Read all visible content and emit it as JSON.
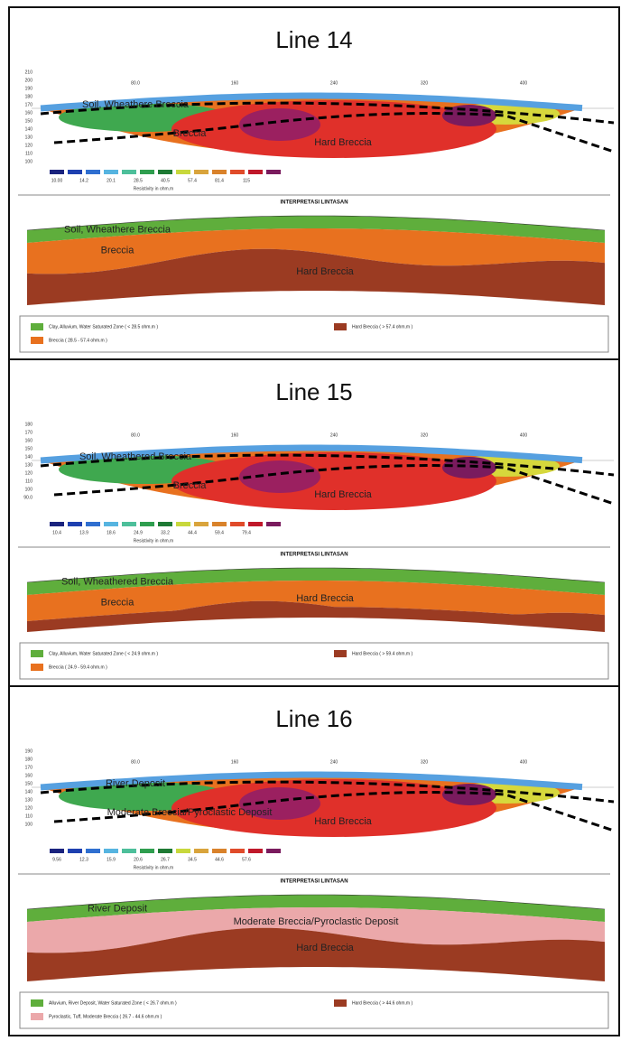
{
  "panels": [
    {
      "title": "Line 14",
      "x_ticks": [
        "80.0",
        "160",
        "240",
        "320",
        "400"
      ],
      "y_ticks": [
        "210",
        "200",
        "190",
        "180",
        "170",
        "160",
        "150",
        "140",
        "130",
        "120",
        "110",
        "100"
      ],
      "section_labels": [
        "Soil, Wheathere Breccia",
        "Breccia",
        "Hard Breccia"
      ],
      "scale_values": [
        "10.00",
        "14.2",
        "20.1",
        "28.5",
        "40.5",
        "57.4",
        "81.4",
        "115"
      ],
      "scale_caption": "Resistivity in ohm.m",
      "interp_title": "INTERPRETASI LINTASAN",
      "interp_labels": [
        "Soil, Wheathere Breccia",
        "Breccia",
        "Hard Breccia"
      ],
      "legend": [
        "Clay, Alluvium, Water Saturated Zone ( < 28.5 ohm.m )",
        "Breccia ( 28.5 - 57.4 ohm.m )",
        "Hard Breccia ( > 57.4 ohm.m )"
      ]
    },
    {
      "title": "Line 15",
      "x_ticks": [
        "80.0",
        "160",
        "240",
        "320",
        "400"
      ],
      "y_ticks": [
        "180",
        "170",
        "160",
        "150",
        "140",
        "130",
        "120",
        "110",
        "100",
        "90.0"
      ],
      "section_labels": [
        "Soil, Wheathered Breccia",
        "Breccia",
        "Hard Breccia"
      ],
      "scale_values": [
        "10.4",
        "13.9",
        "18.6",
        "24.9",
        "33.2",
        "44.4",
        "59.4",
        "79.4"
      ],
      "scale_caption": "Resistivity in ohm.m",
      "interp_title": "INTERPRETASI LINTASAN",
      "interp_labels": [
        "Soil, Wheathered Breccia",
        "Breccia",
        "Hard Breccia"
      ],
      "legend": [
        "Clay, Alluvium, Water Saturated Zone ( < 24.9 ohm.m )",
        "Breccia ( 24.9 - 59.4 ohm.m )",
        "Hard Breccia ( > 59.4 ohm.m )"
      ]
    },
    {
      "title": "Line 16",
      "x_ticks": [
        "80.0",
        "160",
        "240",
        "320",
        "400"
      ],
      "y_ticks": [
        "190",
        "180",
        "170",
        "160",
        "150",
        "140",
        "130",
        "120",
        "110",
        "100"
      ],
      "section_labels": [
        "River Deposit",
        "Moderate Breccia/Pyroclastic Deposit",
        "Hard Breccia"
      ],
      "scale_values": [
        "9.56",
        "12.3",
        "15.9",
        "20.6",
        "26.7",
        "34.5",
        "44.6",
        "57.6"
      ],
      "scale_caption": "Resistivity in ohm.m",
      "interp_title": "INTERPRETASI LINTASAN",
      "interp_labels": [
        "River Deposit",
        "Moderate Breccia/Pyroclastic Deposit",
        "Hard Breccia"
      ],
      "legend": [
        "Alluvium, River Deposit, Water Saturated Zone ( < 26.7 ohm.m )",
        "Pyroclastic, Tuff, Moderate Breccia ( 26.7 - 44.6 ohm.m )",
        "Hard Breccia ( > 44.6 ohm.m )"
      ]
    }
  ]
}
